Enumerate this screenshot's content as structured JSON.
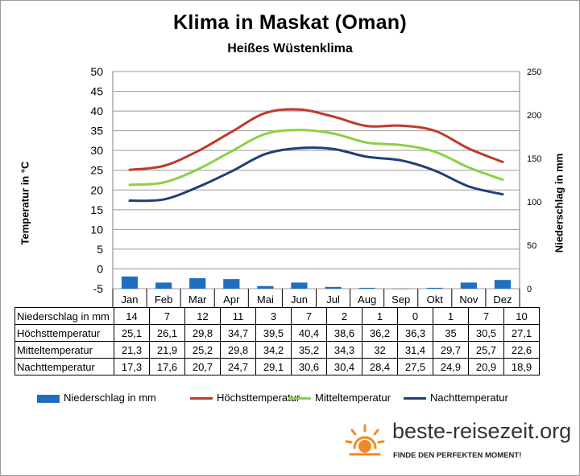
{
  "chart_data": {
    "type": "bar",
    "title": "Klima in Maskat (Oman)",
    "subtitle": "Heißes Wüstenklima",
    "ylabel_left": "Temperatur in °C",
    "ylabel_right": "Niederschlag in mm",
    "ylim_left": [
      -5,
      50
    ],
    "ylim_right": [
      0,
      250
    ],
    "yticks_left": [
      "50",
      "45",
      "40",
      "35",
      "30",
      "25",
      "20",
      "15",
      "10",
      "5",
      "0",
      "-5"
    ],
    "yticks_right": [
      "250",
      "200",
      "150",
      "100",
      "50",
      "0"
    ],
    "categories": [
      "Jan",
      "Feb",
      "Mar",
      "Apr",
      "Mai",
      "Jun",
      "Jul",
      "Aug",
      "Sep",
      "Okt",
      "Nov",
      "Dez"
    ],
    "grid": true,
    "legend_position": "bottom",
    "series": [
      {
        "name": "Niederschlag in mm",
        "type": "bar",
        "axis": "right",
        "color": "#1f6fc0",
        "values": [
          14,
          7,
          12,
          11,
          3,
          7,
          2,
          1,
          0,
          1,
          7,
          10
        ]
      },
      {
        "name": "Höchsttemperatur",
        "type": "line",
        "axis": "left",
        "color": "#c0392b",
        "values": [
          "25,1",
          "26,1",
          "29,8",
          "34,7",
          "39,5",
          "40,4",
          "38,6",
          "36,2",
          "36,3",
          "35",
          "30,5",
          "27,1"
        ]
      },
      {
        "name": "Mitteltemperatur",
        "type": "line",
        "axis": "left",
        "color": "#8bd045",
        "values": [
          "21,3",
          "21,9",
          "25,2",
          "29,8",
          "34,2",
          "35,2",
          "34,3",
          "32",
          "31,4",
          "29,7",
          "25,7",
          "22,6"
        ]
      },
      {
        "name": "Nachttemperatur",
        "type": "line",
        "axis": "left",
        "color": "#1f3f7a",
        "values": [
          "17,3",
          "17,6",
          "20,7",
          "24,7",
          "29,1",
          "30,6",
          "30,4",
          "28,4",
          "27,5",
          "24,9",
          "20,9",
          "18,9"
        ]
      }
    ]
  },
  "logo": {
    "text": "beste-reisezeit.org",
    "tagline": "FINDE DEN PERFEKTEN MOMENT!",
    "color": "#f08a24"
  }
}
